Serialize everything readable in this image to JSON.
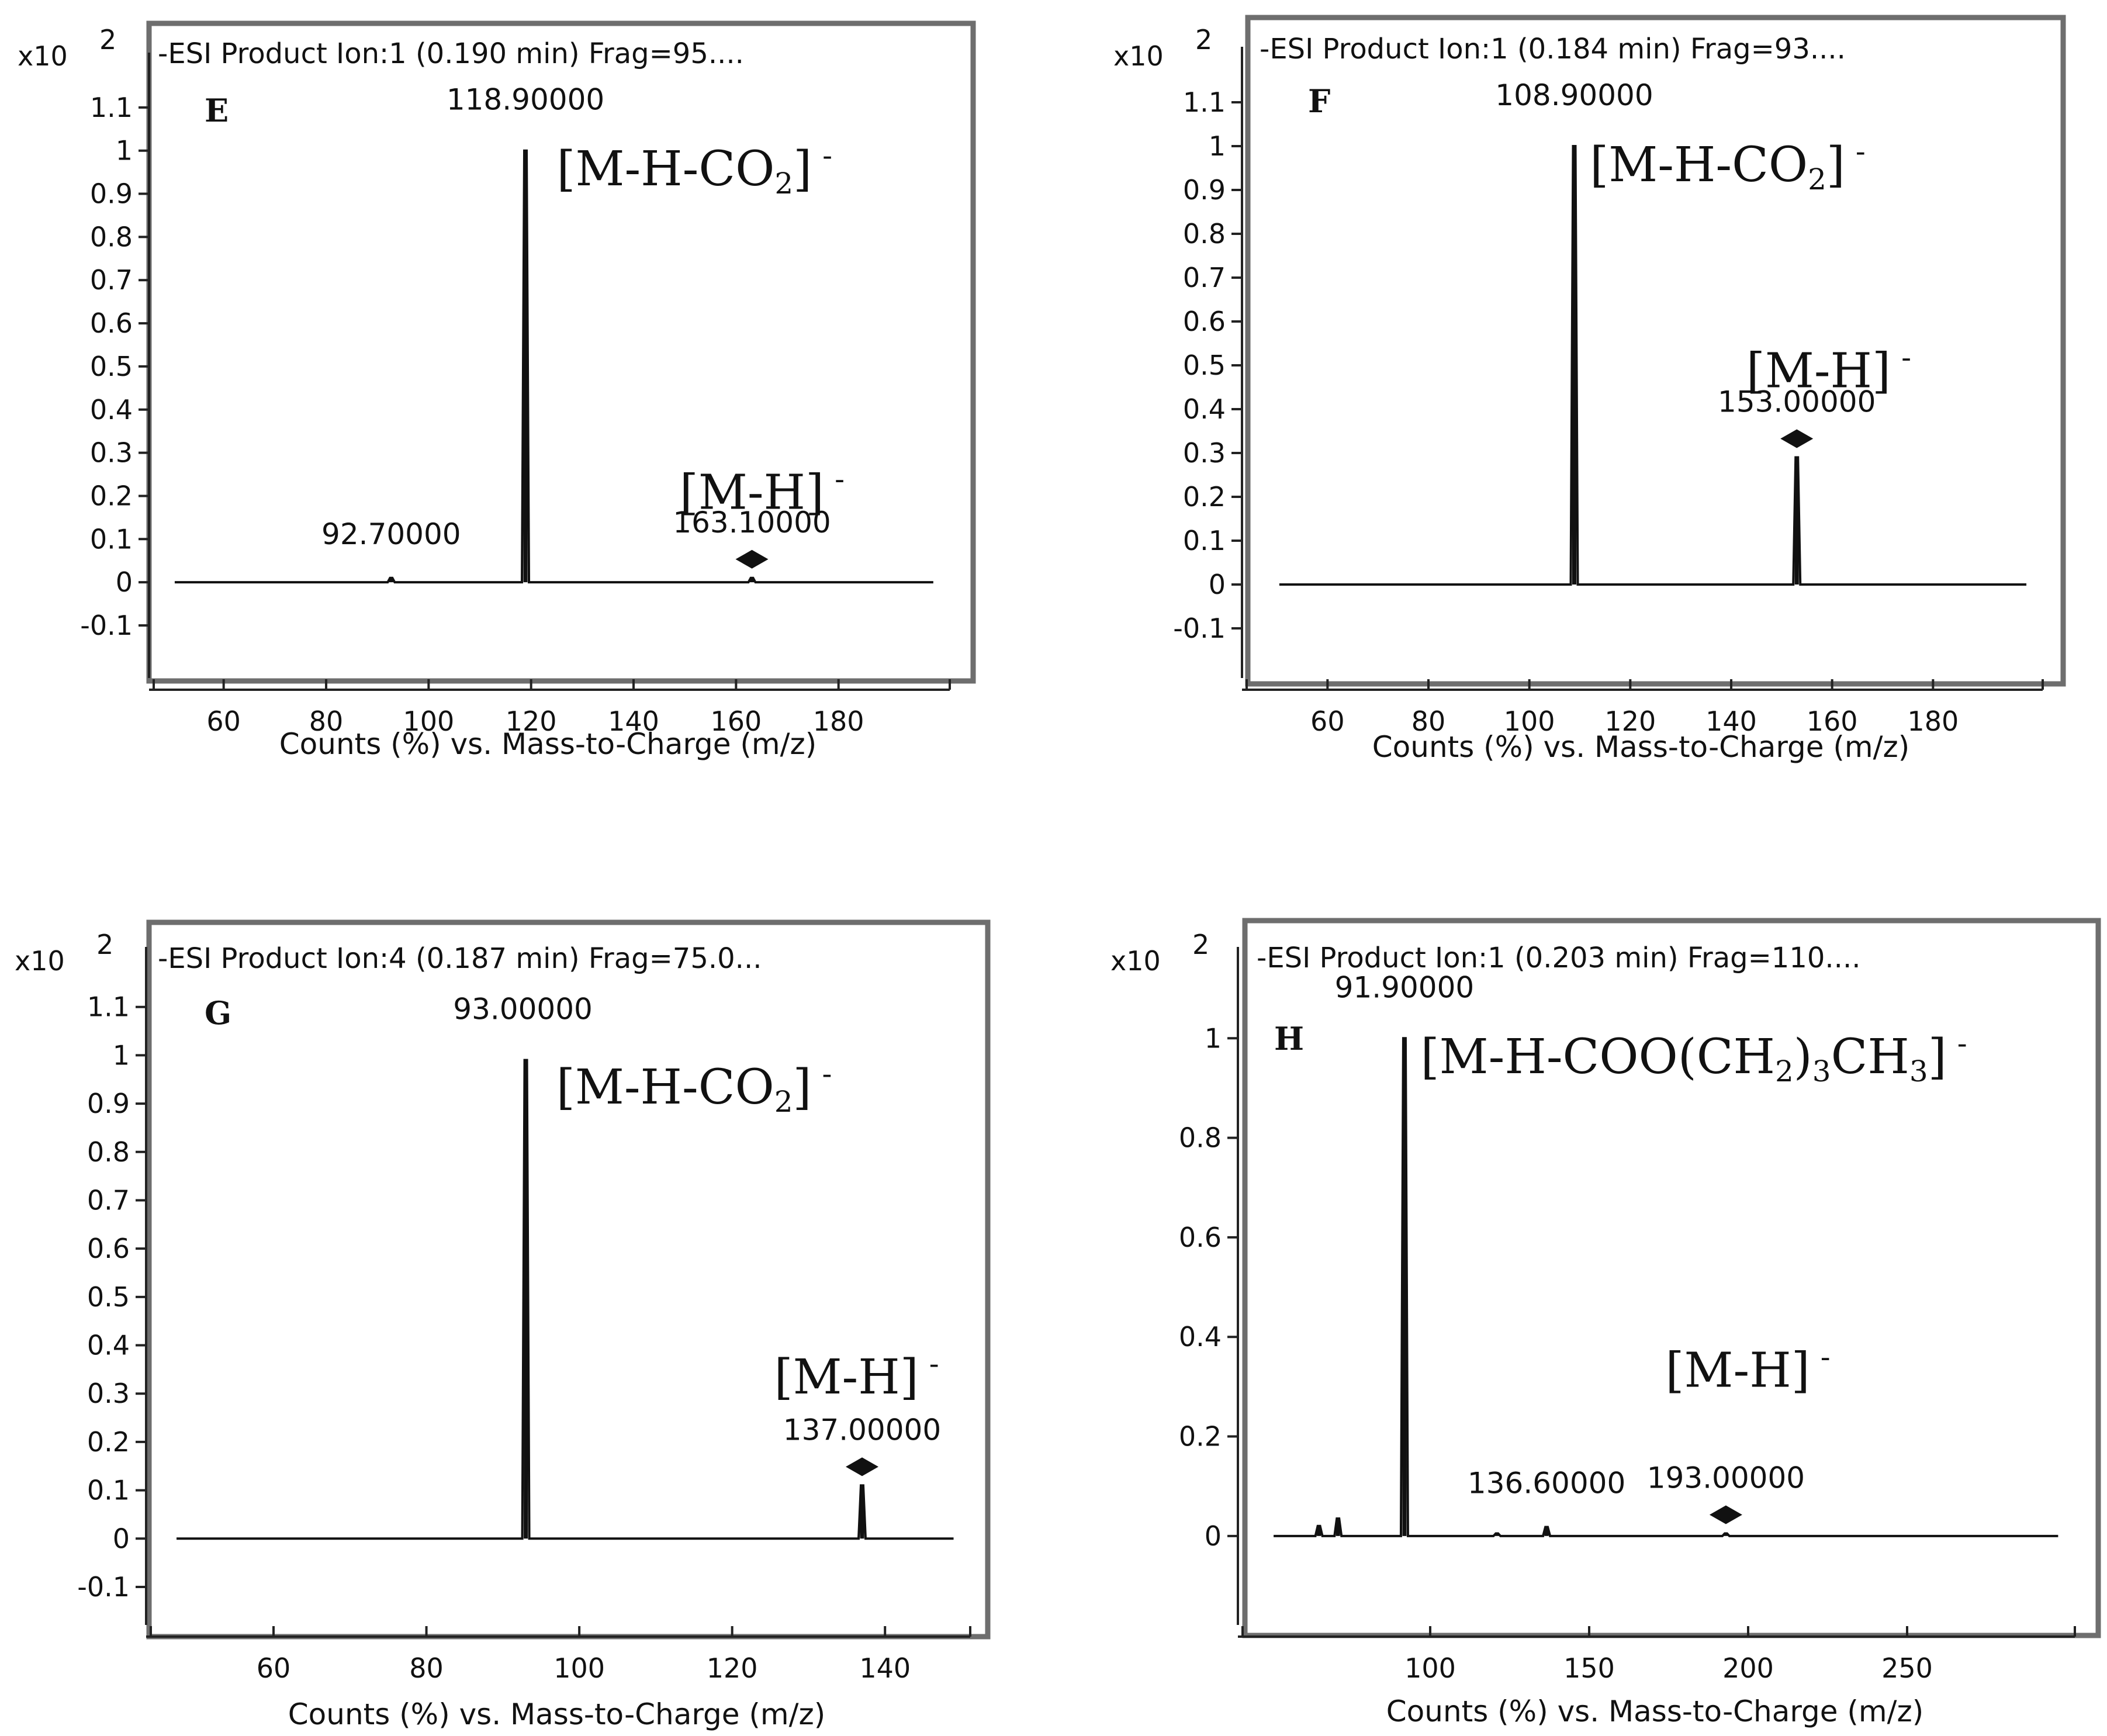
{
  "chart_data": [
    {
      "type": "line",
      "panel": "E",
      "header": "-ESI Product Ion:1 (0.190 min) Frag=95....",
      "multiplier": "x10",
      "multiplier_exp": "2",
      "xlabel": "Counts (%) vs. Mass-to-Charge (m/z)",
      "xlim": [
        50,
        200
      ],
      "ylim": [
        -0.1,
        1.2
      ],
      "x_ticks": [
        60,
        80,
        100,
        120,
        140,
        160,
        180
      ],
      "y_ticks": [
        "-0.1",
        "0",
        "0.1",
        "0.2",
        "0.3",
        "0.4",
        "0.5",
        "0.6",
        "0.7",
        "0.8",
        "0.9",
        "1",
        "1.1"
      ],
      "peaks": [
        {
          "x": 92.7,
          "y": 0.01,
          "label": "92.70000"
        },
        {
          "x": 118.9,
          "y": 1.0,
          "label": "118.90000"
        },
        {
          "x": 163.1,
          "y": 0.01,
          "label": "163.10000",
          "precursor": true
        }
      ],
      "annotations": [
        {
          "text": "[M-H-CO",
          "sub": "2",
          "close": "]",
          "sup": "-",
          "x": 125,
          "y": 0.92
        },
        {
          "text": "[M-H]",
          "sup": "-",
          "x": 149,
          "y": 0.17
        }
      ]
    },
    {
      "type": "line",
      "panel": "F",
      "header": "-ESI Product Ion:1 (0.184 min) Frag=93....",
      "multiplier": "x10",
      "multiplier_exp": "2",
      "xlabel": "Counts (%) vs. Mass-to-Charge (m/z)",
      "xlim": [
        50,
        200
      ],
      "ylim": [
        -0.1,
        1.2
      ],
      "x_ticks": [
        60,
        80,
        100,
        120,
        140,
        160,
        180
      ],
      "y_ticks": [
        "-0.1",
        "0",
        "0.1",
        "0.2",
        "0.3",
        "0.4",
        "0.5",
        "0.6",
        "0.7",
        "0.8",
        "0.9",
        "1",
        "1.1"
      ],
      "peaks": [
        {
          "x": 108.9,
          "y": 1.0,
          "label": "108.90000"
        },
        {
          "x": 153.0,
          "y": 0.29,
          "label": "153.00000",
          "precursor": true
        }
      ],
      "annotations": [
        {
          "text": "[M-H-CO",
          "sub": "2",
          "close": "]",
          "sup": "-",
          "x": 112,
          "y": 0.92
        },
        {
          "text": "[M-H]",
          "sup": "-",
          "x": 143,
          "y": 0.45
        }
      ]
    },
    {
      "type": "line",
      "panel": "G",
      "header": "-ESI Product Ion:4 (0.187 min) Frag=75.0...",
      "multiplier": "x10",
      "multiplier_exp": "2",
      "xlabel": "Counts (%) vs. Mass-to-Charge (m/z)",
      "xlim": [
        47,
        150
      ],
      "ylim": [
        -0.1,
        1.2
      ],
      "x_ticks": [
        60,
        80,
        100,
        120,
        140
      ],
      "y_ticks": [
        "-0.1",
        "0",
        "0.1",
        "0.2",
        "0.3",
        "0.4",
        "0.5",
        "0.6",
        "0.7",
        "0.8",
        "0.9",
        "1",
        "1.1"
      ],
      "peaks": [
        {
          "x": 93.0,
          "y": 0.99,
          "label": "93.00000"
        },
        {
          "x": 137.0,
          "y": 0.11,
          "label": "137.00000",
          "precursor": true
        }
      ],
      "annotations": [
        {
          "text": "[M-H-CO",
          "sub": "2",
          "close": "]",
          "sup": "-",
          "x": 97,
          "y": 0.9
        },
        {
          "text": "[M-H]",
          "sup": "-",
          "x": 125.5,
          "y": 0.3
        }
      ]
    },
    {
      "type": "line",
      "panel": "H",
      "header": "-ESI Product Ion:1 (0.203 min) Frag=110....",
      "multiplier": "x10",
      "multiplier_exp": "2",
      "xlabel": "Counts (%) vs. Mass-to-Charge (m/z)",
      "xlim": [
        50,
        300
      ],
      "ylim": [
        -0.12,
        1.16
      ],
      "x_ticks": [
        100,
        150,
        200,
        250
      ],
      "y_ticks": [
        "0",
        "0.2",
        "0.4",
        "0.6",
        "0.8",
        "1"
      ],
      "peaks": [
        {
          "x": 65.0,
          "y": 0.02
        },
        {
          "x": 71.0,
          "y": 0.035
        },
        {
          "x": 91.9,
          "y": 1.0,
          "label": "91.90000"
        },
        {
          "x": 121.0,
          "y": 0.005
        },
        {
          "x": 136.6,
          "y": 0.018,
          "label": "136.60000"
        },
        {
          "x": 193.0,
          "y": 0.005,
          "label": "193.00000",
          "precursor": true
        }
      ],
      "annotations": [
        {
          "text": "[M-H-COO(CH",
          "sub": "2",
          "mid": ")",
          "sub2": "3",
          "tail": "CH",
          "sub3": "3",
          "close": "]",
          "sup": "-",
          "x": 97,
          "y": 0.93
        },
        {
          "text": "[M-H]",
          "sup": "-",
          "x": 174,
          "y": 0.3
        }
      ]
    }
  ]
}
